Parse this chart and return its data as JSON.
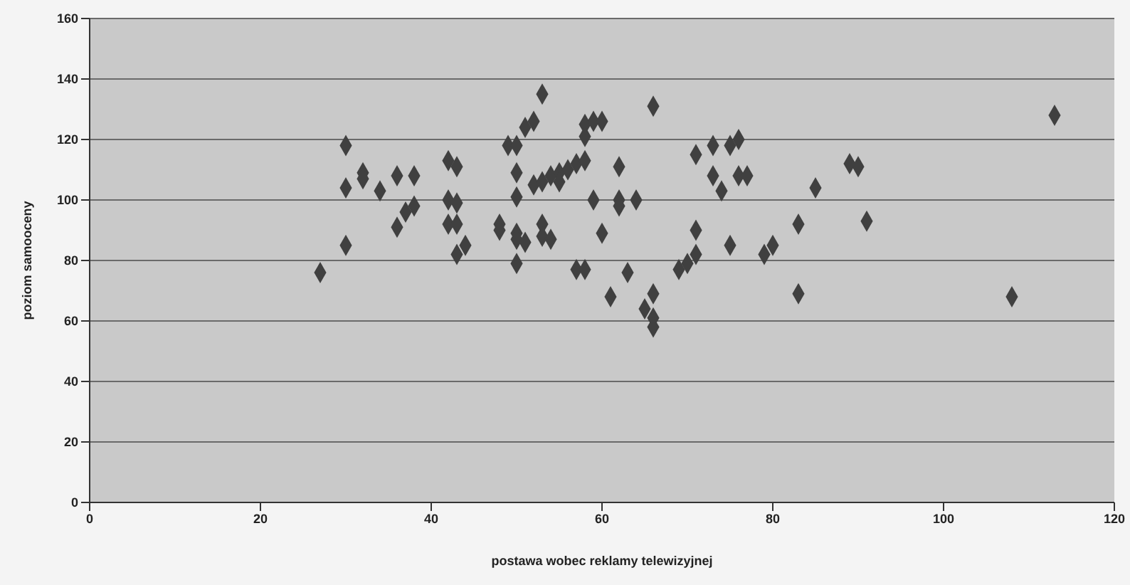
{
  "chart_data": {
    "type": "scatter",
    "xlabel": "postawa wobec reklamy telewizyjnej",
    "ylabel": "poziom samooceny",
    "xlim": [
      0,
      120
    ],
    "xticks": [
      0,
      20,
      40,
      60,
      80,
      100,
      120
    ],
    "ylim": [
      0,
      160
    ],
    "yticks": [
      0,
      20,
      40,
      60,
      80,
      100,
      120,
      140,
      160
    ],
    "grid": "y",
    "marker": "diamond",
    "series": [
      {
        "color": "#404040",
        "x": [
          27,
          30,
          30,
          30,
          32,
          32,
          34,
          36,
          38,
          38,
          37,
          36,
          42,
          43,
          42,
          42,
          43,
          44,
          43,
          43,
          53,
          51,
          52,
          49,
          50,
          50,
          50,
          48,
          48,
          50,
          50,
          51,
          50,
          53,
          53,
          54,
          52,
          54,
          55,
          56,
          57,
          58,
          53,
          55,
          66,
          58,
          59,
          60,
          58,
          62,
          59,
          62,
          62,
          64,
          60,
          57,
          58,
          63,
          61,
          66,
          65,
          66,
          66,
          71,
          73,
          75,
          76,
          73,
          74,
          76,
          77,
          85,
          71,
          75,
          79,
          80,
          69,
          70,
          71,
          83,
          83,
          113,
          90,
          89,
          91,
          108
        ],
        "values": [
          76,
          118,
          104,
          85,
          109,
          107,
          103,
          108,
          108,
          98,
          96,
          91,
          113,
          111,
          100,
          92,
          92,
          85,
          82,
          99,
          135,
          124,
          126,
          118,
          118,
          109,
          101,
          92,
          90,
          89,
          87,
          86,
          79,
          92,
          88,
          87,
          105,
          108,
          109,
          110,
          112,
          113,
          106,
          106,
          131,
          125,
          126,
          126,
          121,
          111,
          100,
          100,
          98,
          100,
          89,
          77,
          77,
          76,
          68,
          69,
          64,
          61,
          58,
          115,
          118,
          118,
          120,
          108,
          103,
          108,
          108,
          104,
          90,
          85,
          82,
          85,
          77,
          79,
          82,
          92,
          69,
          128,
          111,
          112,
          93,
          68
        ]
      }
    ]
  }
}
